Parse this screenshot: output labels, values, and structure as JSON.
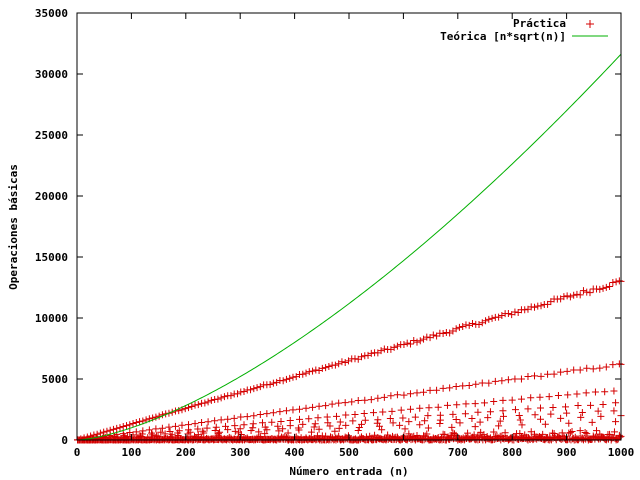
{
  "chart_data": {
    "type": "scatter",
    "title": "",
    "xlabel": "Número entrada (n)",
    "ylabel": "Operaciones básicas",
    "xlim": [
      0,
      1000
    ],
    "ylim": [
      0,
      35000
    ],
    "xticks": [
      0,
      100,
      200,
      300,
      400,
      500,
      600,
      700,
      800,
      900,
      1000
    ],
    "yticks": [
      0,
      5000,
      10000,
      15000,
      20000,
      25000,
      30000,
      35000
    ],
    "xtick_labels": [
      "0",
      "100",
      "200",
      "300",
      "400",
      "500",
      "600",
      "700",
      "800",
      "900",
      "1000"
    ],
    "ytick_labels": [
      "0",
      "5000",
      "10000",
      "15000",
      "20000",
      "25000",
      "30000",
      "35000"
    ],
    "grid": false,
    "legend_position": "top-right",
    "series": [
      {
        "name": "Práctica",
        "kind": "points",
        "marker": "+",
        "color": "#d40000",
        "bands": [
          {
            "slope": 13.0,
            "step": 6
          },
          {
            "slope": 6.2,
            "step": 12
          },
          {
            "slope": 4.1,
            "step": 17
          },
          {
            "slope": 3.05,
            "step": 23
          },
          {
            "slope": 2.45,
            "step": 29
          },
          {
            "slope": 2.0,
            "step": 37
          },
          {
            "slope": 1.5,
            "step": 43
          }
        ],
        "low_cloud": {
          "max_fraction": 0.9,
          "step": 3
        },
        "notable_points": [
          {
            "x": 1000,
            "y": 13000
          },
          {
            "x": 1000,
            "y": 6200
          }
        ]
      },
      {
        "name": "Teórica [n*sqrt(n)]",
        "kind": "line",
        "function": "n*sqrt(n)",
        "color": "#00b000",
        "samples": [
          {
            "x": 0,
            "y": 0
          },
          {
            "x": 100,
            "y": 1000
          },
          {
            "x": 200,
            "y": 2828
          },
          {
            "x": 300,
            "y": 5196
          },
          {
            "x": 400,
            "y": 8000
          },
          {
            "x": 500,
            "y": 11180
          },
          {
            "x": 600,
            "y": 14697
          },
          {
            "x": 700,
            "y": 18520
          },
          {
            "x": 800,
            "y": 22627
          },
          {
            "x": 900,
            "y": 27000
          },
          {
            "x": 1000,
            "y": 31623
          }
        ]
      }
    ]
  }
}
